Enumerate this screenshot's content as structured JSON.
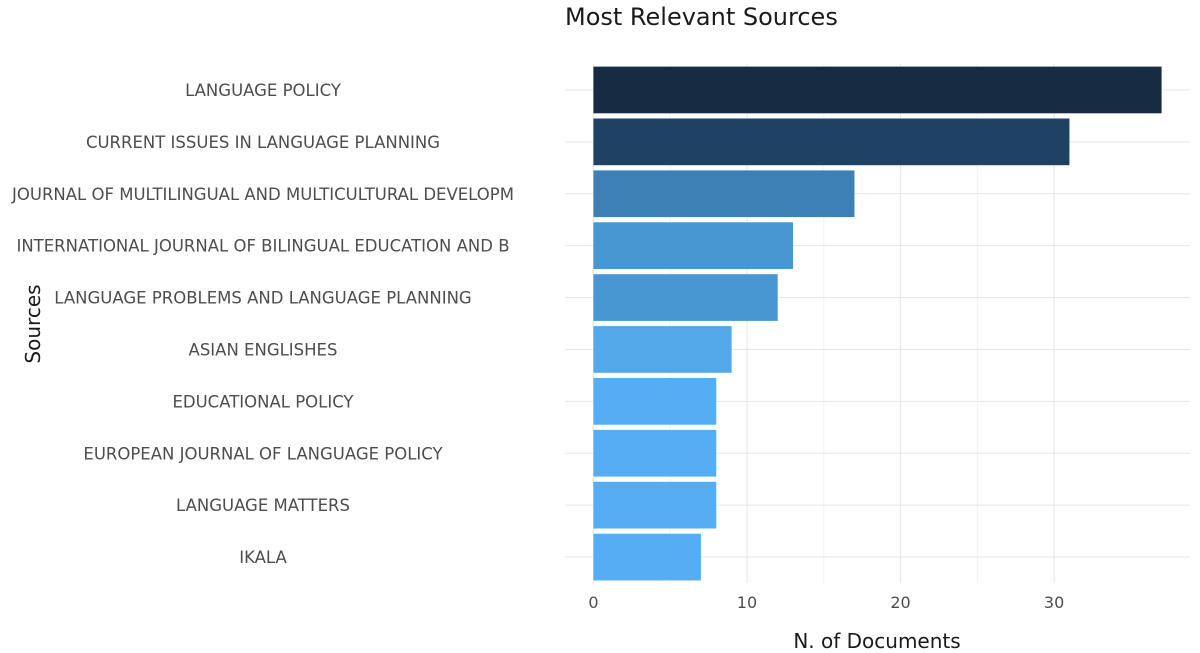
{
  "chart_data": {
    "type": "bar",
    "orientation": "horizontal",
    "title": "Most Relevant Sources",
    "xlabel": "N. of Documents",
    "ylabel": "Sources",
    "categories": [
      "LANGUAGE POLICY",
      "CURRENT ISSUES IN LANGUAGE PLANNING",
      "JOURNAL OF MULTILINGUAL AND MULTICULTURAL DEVELOPM",
      "INTERNATIONAL JOURNAL OF BILINGUAL EDUCATION AND B",
      "LANGUAGE PROBLEMS AND LANGUAGE PLANNING",
      "ASIAN ENGLISHES",
      "EDUCATIONAL POLICY",
      "EUROPEAN JOURNAL OF LANGUAGE POLICY",
      "LANGUAGE MATTERS",
      "IKALA"
    ],
    "values": [
      37,
      31,
      17,
      13,
      12,
      9,
      8,
      8,
      8,
      7
    ],
    "colors": [
      "#172c43",
      "#1f4163",
      "#3d80b6",
      "#4896d2",
      "#4896d2",
      "#52a8e8",
      "#55adf3",
      "#55adf3",
      "#55adf3",
      "#55adf3"
    ],
    "xlim": [
      -1.85,
      38.85
    ],
    "xticks": [
      0,
      10,
      20,
      30
    ],
    "grid": true,
    "legend": "none"
  }
}
